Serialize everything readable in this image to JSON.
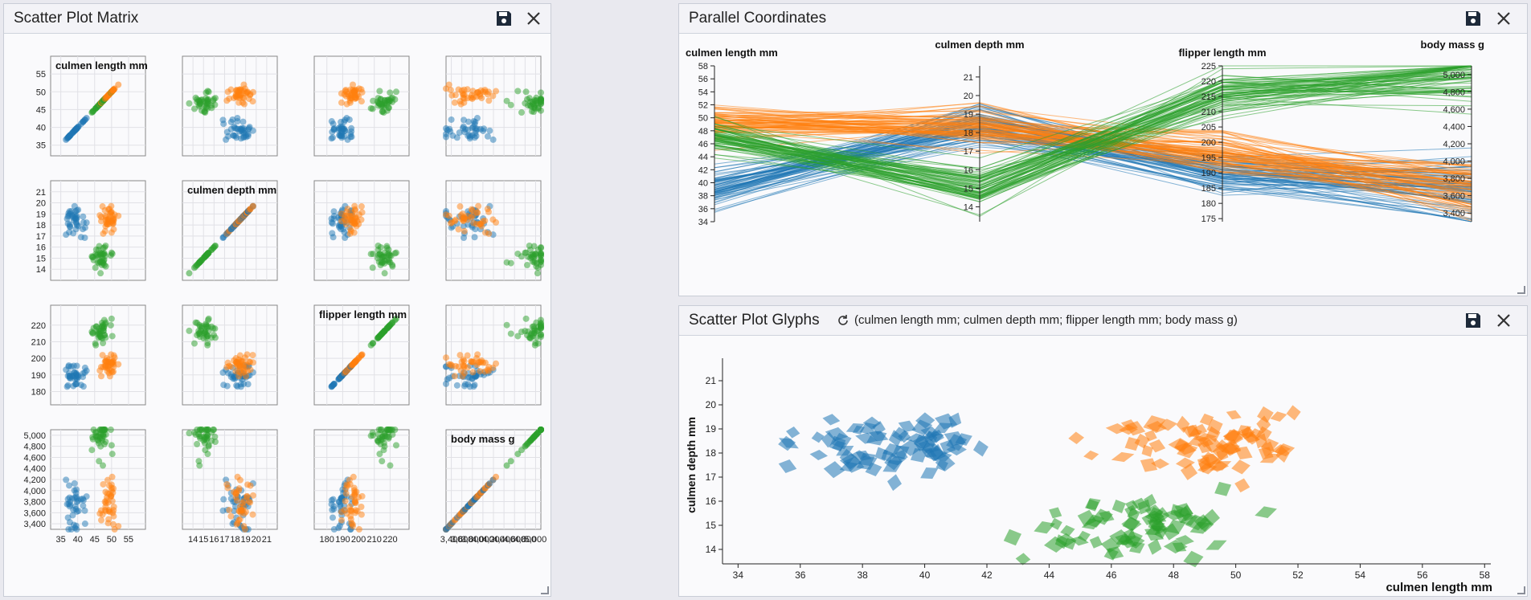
{
  "panels": {
    "spm": {
      "title": "Scatter Plot Matrix"
    },
    "pc": {
      "title": "Parallel Coordinates"
    },
    "glyphs": {
      "title": "Scatter Plot Glyphs",
      "subtitle": "(culmen length mm; culmen depth mm; flipper length mm; body mass g)"
    }
  },
  "icons": {
    "save": "save-icon",
    "close": "close-icon",
    "refresh": "refresh-icon",
    "resize": "resize-handle-icon"
  },
  "colors": {
    "blue": "#1f77b4",
    "orange": "#ff7f0e",
    "green": "#2ca02c"
  },
  "chart_data": [
    {
      "type": "scatter",
      "panel": "spm",
      "variables": [
        {
          "name": "culmen length mm",
          "ticks": [
            "35",
            "40",
            "45",
            "50",
            "55"
          ],
          "range": [
            32,
            60
          ]
        },
        {
          "name": "culmen depth mm",
          "ticks": [
            "14",
            "15",
            "16",
            "17",
            "18",
            "19",
            "20",
            "21"
          ],
          "range": [
            13,
            22
          ]
        },
        {
          "name": "flipper length mm",
          "ticks": [
            "180",
            "190",
            "200",
            "210",
            "220"
          ],
          "range": [
            172,
            232
          ]
        },
        {
          "name": "body mass g",
          "ticks": [
            "3,400",
            "3,600",
            "3,800",
            "4,000",
            "4,200",
            "4,400",
            "4,600",
            "4,800",
            "5,000"
          ],
          "range": [
            3300,
            5100
          ]
        }
      ],
      "series": [
        {
          "color": "#1f77b4",
          "centroid": [
            39,
            18.3,
            190,
            3700
          ]
        },
        {
          "color": "#ff7f0e",
          "centroid": [
            49,
            18.4,
            196,
            3730
          ]
        },
        {
          "color": "#2ca02c",
          "centroid": [
            47,
            15,
            217,
            5000
          ]
        }
      ]
    },
    {
      "type": "line",
      "panel": "pc",
      "axes": [
        {
          "name": "culmen length mm",
          "ticks": [
            "34",
            "36",
            "38",
            "40",
            "42",
            "44",
            "46",
            "48",
            "50",
            "52",
            "54",
            "56",
            "58"
          ],
          "range": [
            34,
            58
          ]
        },
        {
          "name": "culmen depth mm",
          "ticks": [
            "14",
            "15",
            "16",
            "17",
            "18",
            "19",
            "20",
            "21"
          ],
          "range": [
            13.2,
            21.6
          ]
        },
        {
          "name": "flipper length mm",
          "ticks": [
            "175",
            "180",
            "185",
            "190",
            "195",
            "200",
            "205",
            "210",
            "215",
            "220",
            "225"
          ],
          "range": [
            174,
            225
          ]
        },
        {
          "name": "body mass g",
          "ticks": [
            "3,400",
            "3,600",
            "3,800",
            "4,000",
            "4,200",
            "4,400",
            "4,600",
            "4,800",
            "5,000"
          ],
          "range": [
            3300,
            5100
          ]
        }
      ],
      "series": [
        {
          "color": "#1f77b4",
          "centroid": [
            39,
            18.3,
            190,
            3700
          ]
        },
        {
          "color": "#ff7f0e",
          "centroid": [
            49,
            18.4,
            196,
            3730
          ]
        },
        {
          "color": "#2ca02c",
          "centroid": [
            47,
            15,
            217,
            5000
          ]
        }
      ]
    },
    {
      "type": "scatter",
      "panel": "glyphs",
      "xlabel": "culmen length mm",
      "ylabel": "culmen depth mm",
      "xticks": [
        "34",
        "36",
        "38",
        "40",
        "42",
        "44",
        "46",
        "48",
        "50",
        "52",
        "54",
        "56",
        "58"
      ],
      "yticks": [
        "14",
        "15",
        "16",
        "17",
        "18",
        "19",
        "20",
        "21"
      ],
      "xlim": [
        33.5,
        58.2
      ],
      "ylim": [
        13.4,
        21.6
      ],
      "series": [
        {
          "color": "#1f77b4",
          "centroid": [
            39,
            18.3
          ]
        },
        {
          "color": "#ff7f0e",
          "centroid": [
            49,
            18.4
          ]
        },
        {
          "color": "#2ca02c",
          "centroid": [
            47,
            15
          ]
        }
      ]
    }
  ]
}
